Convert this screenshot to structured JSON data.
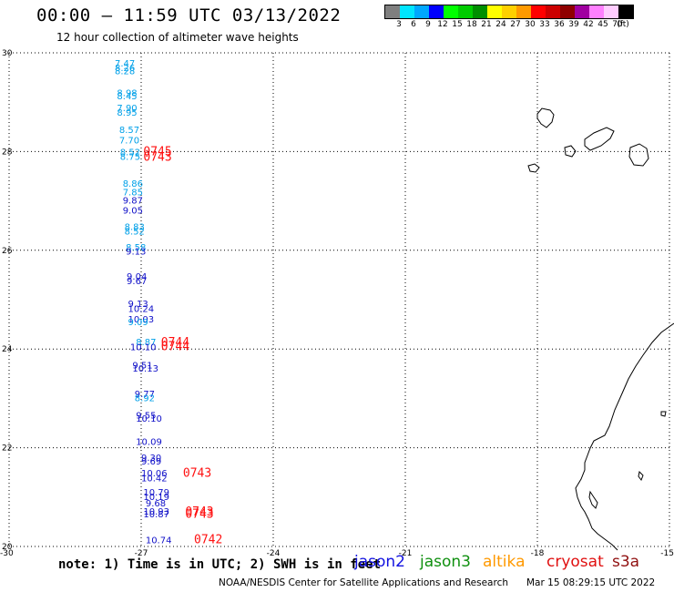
{
  "header": {
    "title": "00:00 – 11:59 UTC 03/13/2022",
    "subtitle": "12 hour collection of altimeter wave heights"
  },
  "colorbar": {
    "colors": [
      "#7f7f7f",
      "#00e5ff",
      "#00a7ff",
      "#0000ff",
      "#00ff00",
      "#00cc00",
      "#008f00",
      "#ffff00",
      "#ffd000",
      "#ff9a00",
      "#ff0000",
      "#cc0000",
      "#8f0000",
      "#a000a0",
      "#ff80ff",
      "#ffccff",
      "#000000"
    ],
    "labels": [
      "3",
      "6",
      "9",
      "12",
      "15",
      "18",
      "21",
      "24",
      "27",
      "30",
      "33",
      "36",
      "39",
      "42",
      "45",
      "70",
      "(ft)"
    ]
  },
  "map": {
    "lon_ticks": [
      "-30",
      "-27",
      "-24",
      "-21",
      "-18",
      "-15"
    ],
    "lat_ticks": [
      "30",
      "28",
      "26",
      "24",
      "22",
      "20"
    ],
    "lon_range": [
      -30,
      -15
    ],
    "lat_range": [
      20,
      30
    ],
    "grid": "dotted"
  },
  "observations": {
    "colors": {
      "cyan": "#00a0e8",
      "blue": "#1010c8",
      "red": "#ff1010"
    },
    "swh": [
      {
        "lat": 29.72,
        "lon": -27.6,
        "text": "7.47",
        "color": "cyan"
      },
      {
        "lat": 29.63,
        "lon": -27.6,
        "text": "8.26",
        "color": "cyan"
      },
      {
        "lat": 29.57,
        "lon": -27.6,
        "text": "8.28",
        "color": "cyan"
      },
      {
        "lat": 29.12,
        "lon": -27.55,
        "text": "8.98",
        "color": "cyan"
      },
      {
        "lat": 29.06,
        "lon": -27.55,
        "text": "8.45",
        "color": "cyan"
      },
      {
        "lat": 28.82,
        "lon": -27.55,
        "text": "7.90",
        "color": "cyan"
      },
      {
        "lat": 28.73,
        "lon": -27.55,
        "text": "8.95",
        "color": "cyan"
      },
      {
        "lat": 28.38,
        "lon": -27.5,
        "text": "8.57",
        "color": "cyan"
      },
      {
        "lat": 28.16,
        "lon": -27.5,
        "text": "7.70",
        "color": "cyan"
      },
      {
        "lat": 27.92,
        "lon": -27.48,
        "text": "8.52",
        "color": "cyan"
      },
      {
        "lat": 27.83,
        "lon": -27.48,
        "text": "8.75",
        "color": "cyan"
      },
      {
        "lat": 27.29,
        "lon": -27.42,
        "text": "8.86",
        "color": "cyan"
      },
      {
        "lat": 27.11,
        "lon": -27.42,
        "text": "7.85",
        "color": "cyan"
      },
      {
        "lat": 26.95,
        "lon": -27.42,
        "text": "9.87",
        "color": "blue"
      },
      {
        "lat": 26.74,
        "lon": -27.42,
        "text": "9.05",
        "color": "blue"
      },
      {
        "lat": 26.41,
        "lon": -27.38,
        "text": "8.83",
        "color": "cyan"
      },
      {
        "lat": 26.32,
        "lon": -27.38,
        "text": "8.52",
        "color": "cyan"
      },
      {
        "lat": 26.0,
        "lon": -27.35,
        "text": "8.58",
        "color": "cyan"
      },
      {
        "lat": 25.91,
        "lon": -27.35,
        "text": "9.13",
        "color": "blue"
      },
      {
        "lat": 25.41,
        "lon": -27.33,
        "text": "9.04",
        "color": "blue"
      },
      {
        "lat": 25.31,
        "lon": -27.33,
        "text": "9.67",
        "color": "blue"
      },
      {
        "lat": 24.85,
        "lon": -27.3,
        "text": "9.13",
        "color": "blue"
      },
      {
        "lat": 24.75,
        "lon": -27.3,
        "text": "10.24",
        "color": "blue"
      },
      {
        "lat": 24.54,
        "lon": -27.3,
        "text": "10.03",
        "color": "blue"
      },
      {
        "lat": 24.48,
        "lon": -27.3,
        "text": "9.09",
        "color": "cyan"
      },
      {
        "lat": 24.08,
        "lon": -27.12,
        "text": "8.87",
        "color": "cyan"
      },
      {
        "lat": 23.98,
        "lon": -27.25,
        "text": "10.10",
        "color": "blue"
      },
      {
        "lat": 23.61,
        "lon": -27.2,
        "text": "9.51",
        "color": "blue"
      },
      {
        "lat": 23.54,
        "lon": -27.2,
        "text": "10.13",
        "color": "blue"
      },
      {
        "lat": 23.03,
        "lon": -27.15,
        "text": "9.77",
        "color": "blue"
      },
      {
        "lat": 22.94,
        "lon": -27.15,
        "text": "8.92",
        "color": "cyan"
      },
      {
        "lat": 22.59,
        "lon": -27.12,
        "text": "9.55",
        "color": "blue"
      },
      {
        "lat": 22.53,
        "lon": -27.12,
        "text": "10.10",
        "color": "blue"
      },
      {
        "lat": 22.06,
        "lon": -27.12,
        "text": "10.09",
        "color": "blue"
      },
      {
        "lat": 21.73,
        "lon": -27.0,
        "text": "9.30",
        "color": "blue"
      },
      {
        "lat": 21.66,
        "lon": -27.0,
        "text": "9.69",
        "color": "blue"
      },
      {
        "lat": 21.42,
        "lon": -27.0,
        "text": "10.06",
        "color": "blue"
      },
      {
        "lat": 21.32,
        "lon": -27.0,
        "text": "10.42",
        "color": "blue"
      },
      {
        "lat": 21.03,
        "lon": -26.95,
        "text": "10.79",
        "color": "blue"
      },
      {
        "lat": 20.94,
        "lon": -26.95,
        "text": "10.19",
        "color": "blue"
      },
      {
        "lat": 20.81,
        "lon": -26.9,
        "text": "9.68",
        "color": "blue"
      },
      {
        "lat": 20.65,
        "lon": -26.95,
        "text": "10.93",
        "color": "blue"
      },
      {
        "lat": 20.59,
        "lon": -26.95,
        "text": "10.87",
        "color": "blue"
      },
      {
        "lat": 20.06,
        "lon": -26.9,
        "text": "10.74",
        "color": "blue"
      }
    ],
    "times": [
      {
        "lat": 27.92,
        "lon": -26.95,
        "text": "0745",
        "color": "red"
      },
      {
        "lat": 27.81,
        "lon": -26.95,
        "text": "0743",
        "color": "red"
      },
      {
        "lat": 24.06,
        "lon": -26.55,
        "text": "0744",
        "color": "red"
      },
      {
        "lat": 23.98,
        "lon": -26.55,
        "text": "0744",
        "color": "red"
      },
      {
        "lat": 21.41,
        "lon": -26.05,
        "text": "0743",
        "color": "red"
      },
      {
        "lat": 20.63,
        "lon": -26.0,
        "text": "0743",
        "color": "red"
      },
      {
        "lat": 20.58,
        "lon": -26.0,
        "text": "0743",
        "color": "red"
      },
      {
        "lat": 20.06,
        "lon": -25.8,
        "text": "0742",
        "color": "red"
      }
    ]
  },
  "footer": {
    "note": "note: 1) Time is in UTC; 2) SWH is in feet",
    "legend": [
      {
        "label": "jason2",
        "color": "#1010e0"
      },
      {
        "label": "jason3",
        "color": "#109010"
      },
      {
        "label": "altika",
        "color": "#ff9900"
      },
      {
        "label": "cryosat",
        "color": "#e01010"
      },
      {
        "label": "s3a",
        "color": "#901010"
      }
    ],
    "credits": "NOAA/NESDIS Center for Satellite Applications and Research",
    "timestamp": "Mar 15 08:29:15 UTC 2022"
  }
}
